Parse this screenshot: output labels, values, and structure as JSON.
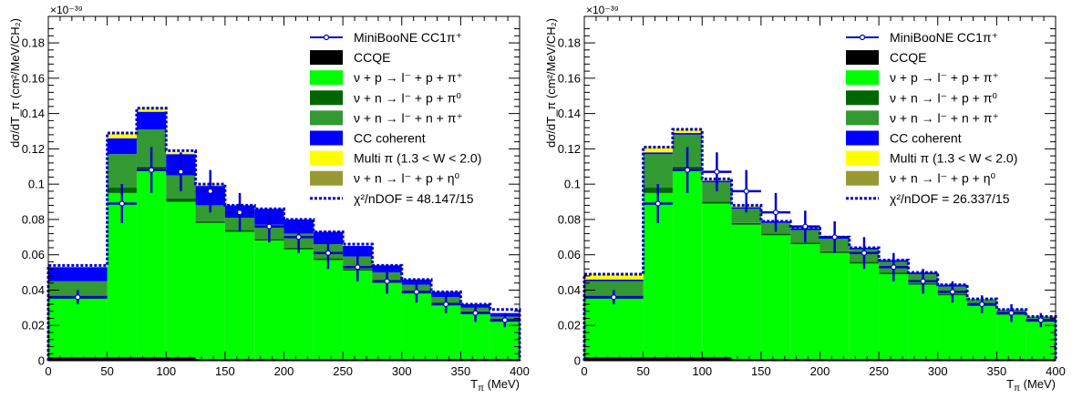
{
  "chart_data": [
    {
      "type": "bar",
      "stacked": true,
      "exponent_label": "×10⁻³⁹",
      "xlabel_main": "T",
      "xlabel_sub": "π",
      "xlabel_unit": " (MeV)",
      "ylabel": "dσ/dT_π (cm²/MeV/CH₂)",
      "xlim": [
        0,
        400
      ],
      "ylim": [
        0,
        0.195
      ],
      "xticks": [
        "0",
        "50",
        "100",
        "150",
        "200",
        "250",
        "300",
        "350",
        "400"
      ],
      "yticks": [
        "0",
        "0.02",
        "0.04",
        "0.06",
        "0.08",
        "0.1",
        "0.12",
        "0.14",
        "0.16",
        "0.18"
      ],
      "bin_edges": [
        0,
        50,
        75,
        100,
        125,
        150,
        175,
        200,
        225,
        250,
        275,
        300,
        325,
        350,
        375,
        400
      ],
      "series": [
        {
          "name": "CCQE",
          "color": "#000000",
          "values": [
            0.002,
            0.002,
            0.002,
            0.002,
            0.001,
            0.001,
            0.001,
            0.001,
            0.001,
            0.001,
            0.001,
            0.001,
            0.001,
            0.001,
            0.001
          ]
        },
        {
          "name": "ν + p → l⁻ + p + π⁺",
          "color": "#00ff00",
          "values": [
            0.033,
            0.093,
            0.106,
            0.088,
            0.077,
            0.072,
            0.067,
            0.062,
            0.056,
            0.05,
            0.043,
            0.037,
            0.031,
            0.026,
            0.021
          ]
        },
        {
          "name": "ν + n → l⁻ + p + π⁰",
          "color": "#006600",
          "values": [
            0.002,
            0.003,
            0.002,
            0.002,
            0.001,
            0.001,
            0.001,
            0.001,
            0.001,
            0.001,
            0.001,
            0.001,
            0.001,
            0.001,
            0.001
          ]
        },
        {
          "name": "ν + n → l⁻ + n + π⁺",
          "color": "#339933",
          "values": [
            0.008,
            0.019,
            0.021,
            0.013,
            0.009,
            0.007,
            0.008,
            0.008,
            0.008,
            0.007,
            0.005,
            0.004,
            0.003,
            0.002,
            0.002
          ]
        },
        {
          "name": "CC coherent",
          "color": "#0000ff",
          "values": [
            0.008,
            0.009,
            0.01,
            0.012,
            0.011,
            0.007,
            0.009,
            0.008,
            0.007,
            0.006,
            0.004,
            0.003,
            0.003,
            0.002,
            0.002
          ]
        },
        {
          "name": "Multi π (1.3 < W < 2.0)",
          "color": "#ffff00",
          "values": [
            0.0,
            0.003,
            0.002,
            0.001,
            0.001,
            0.0,
            0.0,
            0.0,
            0.0,
            0.0,
            0.0,
            0.0,
            0.0,
            0.0,
            0.0
          ]
        },
        {
          "name": "ν + n → l⁻ + p + η⁰",
          "color": "#999933",
          "values": [
            0,
            0,
            0,
            0,
            0,
            0,
            0,
            0,
            0,
            0,
            0,
            0,
            0,
            0,
            0
          ]
        }
      ],
      "total": [
        0.054,
        0.129,
        0.143,
        0.119,
        0.1,
        0.088,
        0.086,
        0.08,
        0.073,
        0.066,
        0.054,
        0.046,
        0.039,
        0.032,
        0.029
      ],
      "data_x": [
        25,
        62.5,
        87.5,
        112.5,
        137.5,
        162.5,
        187.5,
        212.5,
        237.5,
        262.5,
        287.5,
        312.5,
        337.5,
        362.5,
        387.5
      ],
      "data_xerr": [
        25,
        12.5,
        12.5,
        12.5,
        12.5,
        12.5,
        12.5,
        12.5,
        12.5,
        12.5,
        12.5,
        12.5,
        12.5,
        12.5,
        12.5
      ],
      "data_y": [
        0.036,
        0.089,
        0.108,
        0.107,
        0.096,
        0.084,
        0.076,
        0.07,
        0.061,
        0.053,
        0.045,
        0.039,
        0.032,
        0.027,
        0.023
      ],
      "data_yerr": [
        0.004,
        0.011,
        0.013,
        0.011,
        0.012,
        0.011,
        0.009,
        0.009,
        0.009,
        0.008,
        0.007,
        0.006,
        0.005,
        0.005,
        0.004
      ],
      "legend": {
        "position": "top-right",
        "data_label": "MiniBooNE CC1π⁺",
        "chi2_label": "χ²/nDOF = 48.147/15"
      }
    },
    {
      "type": "bar",
      "stacked": true,
      "exponent_label": "×10⁻³⁹",
      "xlabel_main": "T",
      "xlabel_sub": "π",
      "xlabel_unit": " (MeV)",
      "ylabel": "dσ/dT_π (cm²/MeV/CH₂)",
      "xlim": [
        0,
        400
      ],
      "ylim": [
        0,
        0.195
      ],
      "xticks": [
        "0",
        "50",
        "100",
        "150",
        "200",
        "250",
        "300",
        "350",
        "400"
      ],
      "yticks": [
        "0",
        "0.02",
        "0.04",
        "0.06",
        "0.08",
        "0.1",
        "0.12",
        "0.14",
        "0.16",
        "0.18"
      ],
      "bin_edges": [
        0,
        50,
        75,
        100,
        125,
        150,
        175,
        200,
        225,
        250,
        275,
        300,
        325,
        350,
        375,
        400
      ],
      "series": [
        {
          "name": "CCQE",
          "color": "#000000",
          "values": [
            0.002,
            0.002,
            0.002,
            0.002,
            0.001,
            0.001,
            0.001,
            0.001,
            0.001,
            0.001,
            0.001,
            0.001,
            0.001,
            0.001,
            0.001
          ]
        },
        {
          "name": "ν + p → l⁻ + p + π⁺",
          "color": "#00ff00",
          "values": [
            0.033,
            0.093,
            0.106,
            0.087,
            0.076,
            0.07,
            0.065,
            0.06,
            0.054,
            0.048,
            0.042,
            0.036,
            0.03,
            0.025,
            0.021
          ]
        },
        {
          "name": "ν + n → l⁻ + p + π⁰",
          "color": "#006600",
          "values": [
            0.002,
            0.003,
            0.002,
            0.001,
            0.001,
            0.001,
            0.001,
            0.001,
            0.001,
            0.001,
            0.001,
            0.001,
            0.001,
            0.001,
            0.001
          ]
        },
        {
          "name": "ν + n → l⁻ + n + π⁺",
          "color": "#339933",
          "values": [
            0.008,
            0.019,
            0.018,
            0.011,
            0.008,
            0.006,
            0.007,
            0.007,
            0.007,
            0.006,
            0.005,
            0.004,
            0.003,
            0.002,
            0.002
          ]
        },
        {
          "name": "CC coherent",
          "color": "#0000ff",
          "values": [
            0.001,
            0.001,
            0.001,
            0.001,
            0.001,
            0.001,
            0.001,
            0.001,
            0.001,
            0.001,
            0.001,
            0.001,
            0.0,
            0.0,
            0.0
          ]
        },
        {
          "name": "Multi π (1.3 < W < 2.0)",
          "color": "#ffff00",
          "values": [
            0.003,
            0.003,
            0.002,
            0.001,
            0.001,
            0.0,
            0.0,
            0.0,
            0.0,
            0.0,
            0.0,
            0.0,
            0.0,
            0.0,
            0.0
          ]
        },
        {
          "name": "ν + n → l⁻ + p + η⁰",
          "color": "#999933",
          "values": [
            0,
            0,
            0,
            0,
            0,
            0,
            0,
            0,
            0,
            0,
            0,
            0,
            0,
            0,
            0
          ]
        }
      ],
      "total": [
        0.049,
        0.121,
        0.131,
        0.103,
        0.088,
        0.079,
        0.075,
        0.07,
        0.064,
        0.057,
        0.05,
        0.043,
        0.035,
        0.029,
        0.025
      ],
      "data_x": [
        25,
        62.5,
        87.5,
        112.5,
        137.5,
        162.5,
        187.5,
        212.5,
        237.5,
        262.5,
        287.5,
        312.5,
        337.5,
        362.5,
        387.5
      ],
      "data_xerr": [
        25,
        12.5,
        12.5,
        12.5,
        12.5,
        12.5,
        12.5,
        12.5,
        12.5,
        12.5,
        12.5,
        12.5,
        12.5,
        12.5,
        12.5
      ],
      "data_y": [
        0.036,
        0.089,
        0.108,
        0.107,
        0.096,
        0.084,
        0.076,
        0.07,
        0.061,
        0.053,
        0.045,
        0.039,
        0.032,
        0.027,
        0.023
      ],
      "data_yerr": [
        0.004,
        0.011,
        0.013,
        0.011,
        0.012,
        0.011,
        0.009,
        0.009,
        0.009,
        0.008,
        0.007,
        0.006,
        0.005,
        0.005,
        0.004
      ],
      "legend": {
        "position": "top-right",
        "data_label": "MiniBooNE CC1π⁺",
        "chi2_label": "χ²/nDOF = 26.337/15"
      }
    }
  ]
}
